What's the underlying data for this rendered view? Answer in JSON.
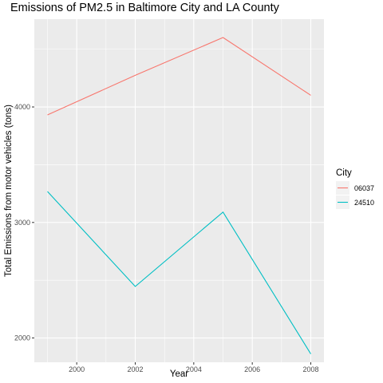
{
  "chart_data": {
    "type": "line",
    "title": "Emissions of PM2.5 in Baltimore City and LA County",
    "xlabel": "Year",
    "ylabel": "Total Emissions from motor vehicles (tons)",
    "x": [
      1999,
      2002,
      2005,
      2008
    ],
    "x_ticks": [
      2000,
      2002,
      2004,
      2006,
      2008
    ],
    "y_ticks": [
      2000,
      3000,
      4000
    ],
    "xlim": [
      1998.55,
      2008.45
    ],
    "ylim": [
      1790,
      4760
    ],
    "grid": true,
    "legend": {
      "title": "City",
      "position": "right"
    },
    "series": [
      {
        "name": "06037",
        "color": "#F8766D",
        "values": [
          3931,
          4274,
          4601,
          4101
        ]
      },
      {
        "name": "24510",
        "color": "#00BFC4",
        "values": [
          3268,
          2446,
          3090,
          1862
        ]
      }
    ]
  }
}
